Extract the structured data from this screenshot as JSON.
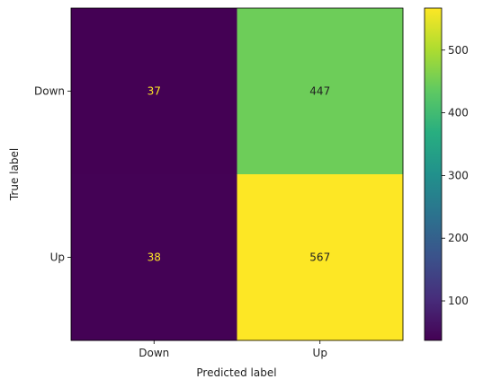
{
  "chart_data": {
    "type": "heatmap",
    "xlabel": "Predicted label",
    "ylabel": "True label",
    "x_categories": [
      "Down",
      "Up"
    ],
    "y_categories": [
      "Down",
      "Up"
    ],
    "values": [
      [
        37,
        447
      ],
      [
        38,
        567
      ]
    ],
    "colormap": "viridis",
    "colorbar": {
      "ticks": [
        "100",
        "200",
        "300",
        "400",
        "500"
      ],
      "range": [
        37,
        567
      ]
    },
    "cell_text_colors": {
      "dark_cell": "#fde725",
      "light_cell": "#222222"
    }
  }
}
